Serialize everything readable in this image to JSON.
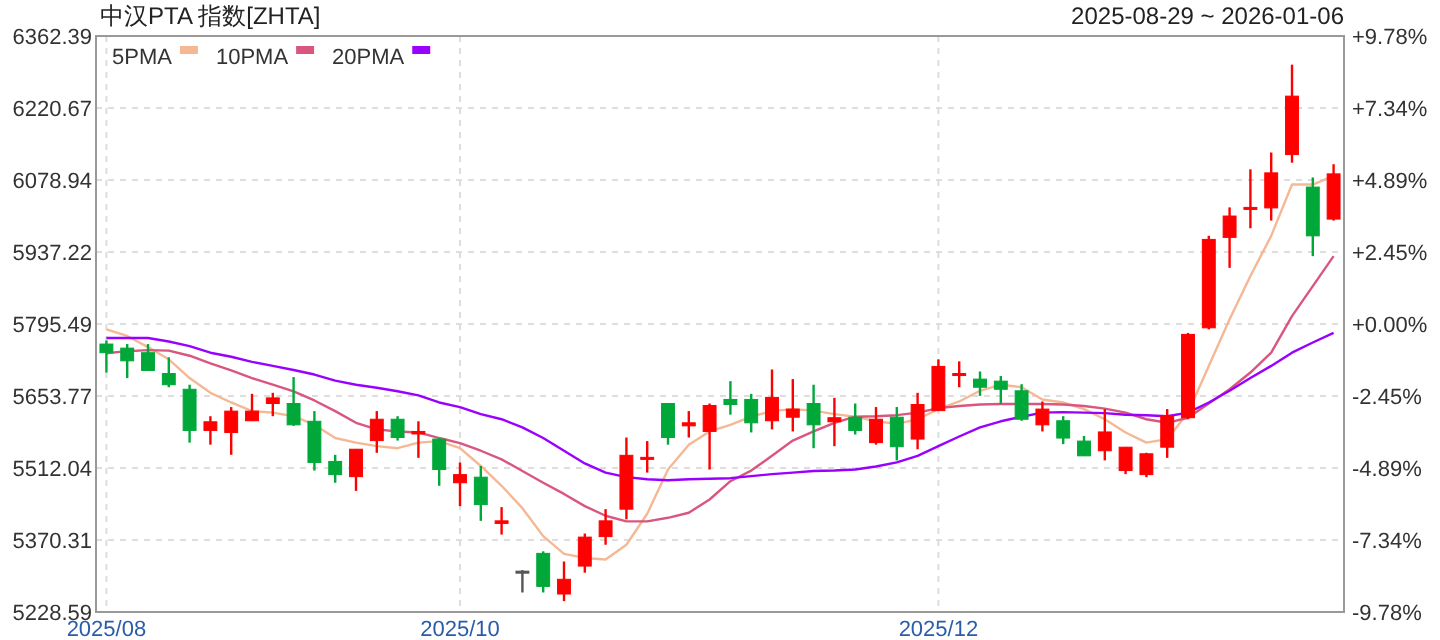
{
  "chart_data": {
    "type": "candlestick",
    "title": "中汉PTA 指数[ZHTA]",
    "annotations": [
      "2025-08-29 ~ 2026-01-06"
    ],
    "categories": [
      "2025/08",
      null,
      null,
      null,
      null,
      null,
      null,
      null,
      null,
      null,
      null,
      null,
      null,
      null,
      null,
      null,
      null,
      "2025/10",
      null,
      null,
      null,
      null,
      null,
      null,
      null,
      null,
      null,
      null,
      null,
      null,
      null,
      null,
      null,
      null,
      null,
      null,
      null,
      null,
      null,
      null,
      "2025/12",
      null,
      null,
      null,
      null,
      null,
      null,
      null,
      null,
      null,
      null,
      null,
      null,
      null,
      null,
      null,
      null,
      null,
      null,
      null
    ],
    "ohlc": [
      [
        5756,
        5763,
        5700,
        5739
      ],
      [
        5748,
        5756,
        5689,
        5723
      ],
      [
        5739,
        5756,
        5704,
        5704
      ],
      [
        5698,
        5730,
        5671,
        5676
      ],
      [
        5667,
        5676,
        5562,
        5586
      ],
      [
        5586,
        5614,
        5558,
        5603
      ],
      [
        5582,
        5632,
        5538,
        5624
      ],
      [
        5605,
        5658,
        5605,
        5624
      ],
      [
        5639,
        5660,
        5614,
        5650
      ],
      [
        5639,
        5691,
        5595,
        5597
      ],
      [
        5604,
        5624,
        5507,
        5523
      ],
      [
        5525,
        5538,
        5483,
        5499
      ],
      [
        5495,
        5549,
        5467,
        5549
      ],
      [
        5566,
        5624,
        5542,
        5608
      ],
      [
        5608,
        5614,
        5566,
        5572
      ],
      [
        5579,
        5604,
        5532,
        5584
      ],
      [
        5569,
        5571,
        5477,
        5509
      ],
      [
        5483,
        5523,
        5437,
        5499
      ],
      [
        5494,
        5516,
        5408,
        5440
      ],
      [
        5403,
        5435,
        5381,
        5408
      ],
      [
        5309,
        5311,
        5267,
        5309
      ],
      [
        5344,
        5348,
        5267,
        5279
      ],
      [
        5264,
        5328,
        5250,
        5293
      ],
      [
        5319,
        5383,
        5306,
        5376
      ],
      [
        5377,
        5431,
        5361,
        5408
      ],
      [
        5431,
        5572,
        5411,
        5537
      ],
      [
        5529,
        5565,
        5503,
        5533
      ],
      [
        5639,
        5639,
        5558,
        5572
      ],
      [
        5595,
        5624,
        5572,
        5601
      ],
      [
        5584,
        5639,
        5509,
        5635
      ],
      [
        5647,
        5683,
        5617,
        5637
      ],
      [
        5647,
        5658,
        5582,
        5601
      ],
      [
        5605,
        5706,
        5588,
        5651
      ],
      [
        5612,
        5687,
        5584,
        5628
      ],
      [
        5639,
        5676,
        5551,
        5597
      ],
      [
        5603,
        5650,
        5555,
        5611
      ],
      [
        5612,
        5639,
        5578,
        5586
      ],
      [
        5562,
        5632,
        5558,
        5608
      ],
      [
        5612,
        5632,
        5527,
        5554
      ],
      [
        5569,
        5660,
        5549,
        5637
      ],
      [
        5625,
        5726,
        5625,
        5712
      ],
      [
        5696,
        5722,
        5671,
        5698
      ],
      [
        5687,
        5702,
        5654,
        5671
      ],
      [
        5683,
        5693,
        5638,
        5667
      ],
      [
        5664,
        5677,
        5605,
        5608
      ],
      [
        5597,
        5643,
        5584,
        5628
      ],
      [
        5605,
        5614,
        5559,
        5571
      ],
      [
        5565,
        5575,
        5536,
        5536
      ],
      [
        5546,
        5628,
        5527,
        5583
      ],
      [
        5507,
        5553,
        5500,
        5553
      ],
      [
        5499,
        5542,
        5494,
        5540
      ],
      [
        5553,
        5628,
        5532,
        5614
      ],
      [
        5611,
        5778,
        5608,
        5775
      ],
      [
        5788,
        5969,
        5785,
        5962
      ],
      [
        5966,
        6025,
        5906,
        6008
      ],
      [
        6023,
        6100,
        5984,
        6025
      ],
      [
        6024,
        6133,
        5999,
        6093
      ],
      [
        6129,
        6306,
        6113,
        6244
      ],
      [
        6065,
        6084,
        5929,
        5969
      ],
      [
        6002,
        6110,
        5999,
        6091
      ]
    ],
    "colors": [
      "#00a83a",
      "#00a83a",
      "#00a83a",
      "#00a83a",
      "#00a83a",
      "#ff0000",
      "#ff0000",
      "#ff0000",
      "#ff0000",
      "#00a83a",
      "#00a83a",
      "#00a83a",
      "#ff0000",
      "#ff0000",
      "#00a83a",
      "#ff0000",
      "#00a83a",
      "#ff0000",
      "#00a83a",
      "#ff0000",
      "#555555",
      "#00a83a",
      "#ff0000",
      "#ff0000",
      "#ff0000",
      "#ff0000",
      "#ff0000",
      "#00a83a",
      "#ff0000",
      "#ff0000",
      "#00a83a",
      "#00a83a",
      "#ff0000",
      "#ff0000",
      "#00a83a",
      "#ff0000",
      "#00a83a",
      "#ff0000",
      "#00a83a",
      "#ff0000",
      "#ff0000",
      "#ff0000",
      "#00a83a",
      "#00a83a",
      "#00a83a",
      "#ff0000",
      "#00a83a",
      "#00a83a",
      "#ff0000",
      "#ff0000",
      "#ff0000",
      "#ff0000",
      "#ff0000",
      "#ff0000",
      "#ff0000",
      "#ff0000",
      "#ff0000",
      "#ff0000",
      "#00a83a",
      "#ff0000"
    ],
    "series": [
      {
        "name": "5PMA",
        "type": "line",
        "color": "#f5b895",
        "values": [
          5785,
          5772,
          5750,
          5726,
          5689,
          5660,
          5641,
          5624,
          5621,
          5614,
          5597,
          5571,
          5562,
          5555,
          5551,
          5562,
          5565,
          5551,
          5516,
          5477,
          5433,
          5378,
          5343,
          5335,
          5332,
          5361,
          5422,
          5509,
          5558,
          5584,
          5597,
          5613,
          5624,
          5628,
          5625,
          5618,
          5613,
          5604,
          5599,
          5608,
          5628,
          5643,
          5664,
          5676,
          5671,
          5647,
          5641,
          5628,
          5608,
          5582,
          5562,
          5569,
          5621,
          5713,
          5805,
          5890,
          5969,
          6070,
          6070,
          6087
        ]
      },
      {
        "name": "10PMA",
        "type": "line",
        "color": "#d9577f",
        "values": [
          5738,
          5742,
          5744,
          5743,
          5733,
          5718,
          5704,
          5689,
          5676,
          5663,
          5645,
          5624,
          5601,
          5588,
          5584,
          5582,
          5571,
          5561,
          5546,
          5529,
          5506,
          5483,
          5461,
          5437,
          5418,
          5407,
          5407,
          5414,
          5424,
          5450,
          5486,
          5507,
          5536,
          5566,
          5584,
          5601,
          5613,
          5614,
          5616,
          5621,
          5630,
          5634,
          5637,
          5638,
          5638,
          5638,
          5637,
          5634,
          5629,
          5621,
          5608,
          5601,
          5611,
          5639,
          5667,
          5700,
          5739,
          5811,
          5870,
          5929
        ]
      },
      {
        "name": "20PMA",
        "type": "line",
        "color": "#9900ff",
        "values": [
          5768,
          5768,
          5768,
          5761,
          5752,
          5739,
          5731,
          5721,
          5713,
          5705,
          5696,
          5684,
          5676,
          5670,
          5663,
          5655,
          5641,
          5632,
          5618,
          5608,
          5592,
          5571,
          5546,
          5521,
          5503,
          5494,
          5490,
          5488,
          5490,
          5491,
          5492,
          5496,
          5500,
          5503,
          5506,
          5507,
          5509,
          5515,
          5523,
          5536,
          5555,
          5574,
          5592,
          5604,
          5613,
          5621,
          5622,
          5621,
          5620,
          5617,
          5616,
          5614,
          5621,
          5641,
          5664,
          5689,
          5713,
          5739,
          5759,
          5778
        ]
      }
    ],
    "ylim": [
      5228.59,
      6362.39
    ],
    "yticks": [
      5228.59,
      5370.31,
      5512.04,
      5653.77,
      5795.49,
      5937.22,
      6078.94,
      6220.67,
      6362.39
    ],
    "y2lim": [
      -9.78,
      9.78
    ],
    "y2ticks": [
      {
        "value": -9.78,
        "label": "-9.78%"
      },
      {
        "value": -7.34,
        "label": "-7.34%"
      },
      {
        "value": -4.89,
        "label": "-4.89%"
      },
      {
        "value": -2.45,
        "label": "-2.45%"
      },
      {
        "value": 0,
        "label": "+0.00%"
      },
      {
        "value": 2.45,
        "label": "+2.45%"
      },
      {
        "value": 4.89,
        "label": "+4.89%"
      },
      {
        "value": 7.34,
        "label": "+7.34%"
      },
      {
        "value": 9.78,
        "label": "+9.78%"
      }
    ],
    "grid": true,
    "legend": "top left"
  }
}
